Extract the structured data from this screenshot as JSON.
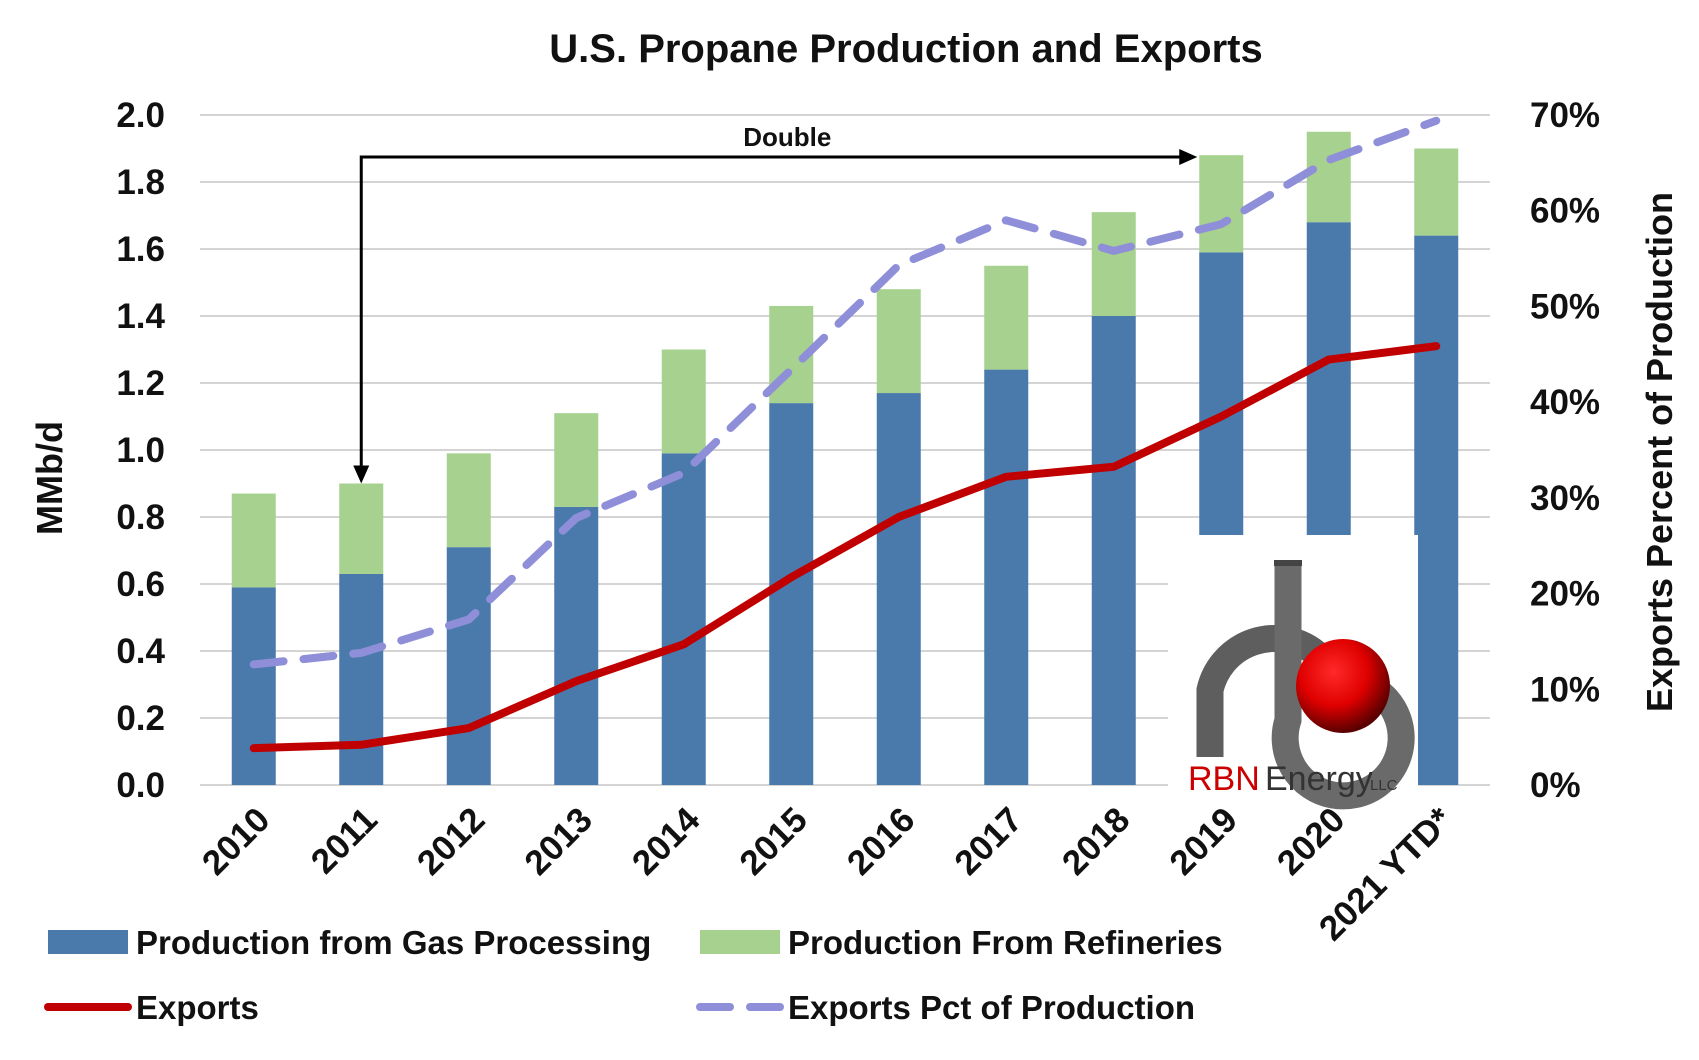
{
  "chart_data": {
    "type": "bar",
    "title": "U.S. Propane Production and Exports",
    "categories": [
      "2010",
      "2011",
      "2012",
      "2013",
      "2014",
      "2015",
      "2016",
      "2017",
      "2018",
      "2019",
      "2020",
      "2021 YTD*"
    ],
    "series": [
      {
        "name": "Production from Gas Processing",
        "kind": "stacked-bar",
        "axis": "left",
        "color": "#4A7AAB",
        "values": [
          0.59,
          0.63,
          0.71,
          0.83,
          0.99,
          1.14,
          1.17,
          1.24,
          1.4,
          1.59,
          1.68,
          1.64
        ]
      },
      {
        "name": "Production From Refineries",
        "kind": "stacked-bar",
        "axis": "left",
        "color": "#A6D18E",
        "values": [
          0.28,
          0.27,
          0.28,
          0.28,
          0.31,
          0.29,
          0.31,
          0.31,
          0.31,
          0.29,
          0.27,
          0.26
        ]
      },
      {
        "name": "Exports",
        "kind": "line",
        "axis": "left",
        "color": "#C00000",
        "values": [
          0.11,
          0.12,
          0.17,
          0.31,
          0.42,
          0.62,
          0.8,
          0.92,
          0.95,
          1.1,
          1.27,
          1.31
        ]
      },
      {
        "name": "Exports Pct of Production",
        "kind": "dashed-line",
        "axis": "right",
        "color": "#8F8FD9",
        "values": [
          12.6,
          13.8,
          17.3,
          27.9,
          32.6,
          43.4,
          54.3,
          59.0,
          55.8,
          58.6,
          65.3,
          69.4
        ]
      }
    ],
    "ylabel": "MMb/d",
    "ylim": [
      0,
      2.0
    ],
    "yticks": [
      "0.0",
      "0.2",
      "0.4",
      "0.6",
      "0.8",
      "1.0",
      "1.2",
      "1.4",
      "1.6",
      "1.8",
      "2.0"
    ],
    "y2label": "Exports Percent of Production",
    "y2lim": [
      0,
      70
    ],
    "y2ticks": [
      "0%",
      "10%",
      "20%",
      "30%",
      "40%",
      "50%",
      "60%",
      "70%"
    ],
    "grid": true,
    "legend_position": "bottom",
    "annotations": [
      {
        "text": "Double",
        "from_category": "2011",
        "to_category": "2019"
      }
    ],
    "logo": {
      "letters": "RBN",
      "text": "Energy",
      "suffix": "LLC"
    }
  }
}
